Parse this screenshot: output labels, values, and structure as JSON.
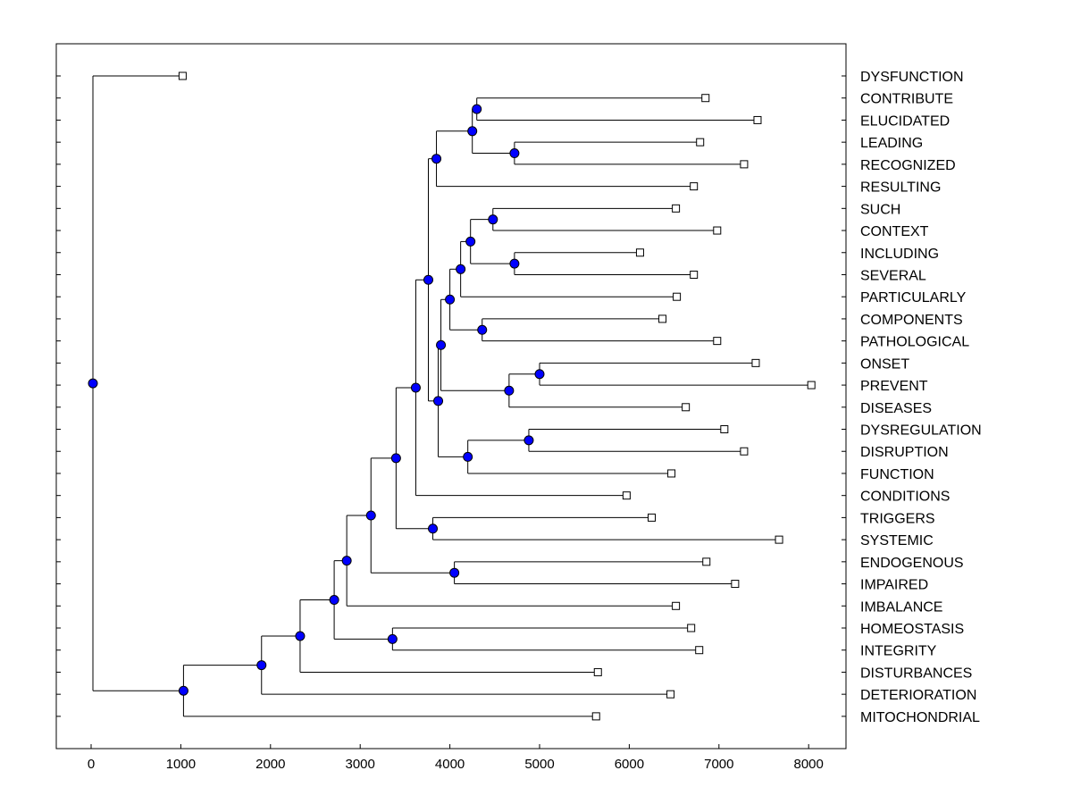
{
  "chart_data": {
    "type": "dendrogram",
    "orientation": "horizontal",
    "xlim": [
      -400,
      8400
    ],
    "x_ticks": [
      0,
      1000,
      2000,
      3000,
      4000,
      5000,
      6000,
      7000,
      8000
    ],
    "x_tick_labels": [
      "0",
      "1000",
      "2000",
      "3000",
      "4000",
      "5000",
      "6000",
      "7000",
      "8000"
    ],
    "leaves": [
      {
        "name": "DYSFUNCTION",
        "value": 1020
      },
      {
        "name": "CONTRIBUTE",
        "value": 6850
      },
      {
        "name": "ELUCIDATED",
        "value": 7430
      },
      {
        "name": "LEADING",
        "value": 6790
      },
      {
        "name": "RECOGNIZED",
        "value": 7280
      },
      {
        "name": "RESULTING",
        "value": 6720
      },
      {
        "name": "SUCH",
        "value": 6520
      },
      {
        "name": "CONTEXT",
        "value": 6980
      },
      {
        "name": "INCLUDING",
        "value": 6120
      },
      {
        "name": "SEVERAL",
        "value": 6720
      },
      {
        "name": "PARTICULARLY",
        "value": 6530
      },
      {
        "name": "COMPONENTS",
        "value": 6370
      },
      {
        "name": "PATHOLOGICAL",
        "value": 6980
      },
      {
        "name": "ONSET",
        "value": 7410
      },
      {
        "name": "PREVENT",
        "value": 8030
      },
      {
        "name": "DISEASES",
        "value": 6630
      },
      {
        "name": "DYSREGULATION",
        "value": 7060
      },
      {
        "name": "DISRUPTION",
        "value": 7280
      },
      {
        "name": "FUNCTION",
        "value": 6470
      },
      {
        "name": "CONDITIONS",
        "value": 5970
      },
      {
        "name": "TRIGGERS",
        "value": 6250
      },
      {
        "name": "SYSTEMIC",
        "value": 7670
      },
      {
        "name": "ENDOGENOUS",
        "value": 6860
      },
      {
        "name": "IMPAIRED",
        "value": 7180
      },
      {
        "name": "IMBALANCE",
        "value": 6520
      },
      {
        "name": "HOMEOSTASIS",
        "value": 6690
      },
      {
        "name": "INTEGRITY",
        "value": 6780
      },
      {
        "name": "DISTURBANCES",
        "value": 5650
      },
      {
        "name": "DETERIORATION",
        "value": 6460
      },
      {
        "name": "MITOCHONDRIAL",
        "value": 5630
      }
    ],
    "merges": [
      {
        "id": "n1",
        "value": 4300,
        "children": [
          "L1",
          "L2"
        ]
      },
      {
        "id": "n2",
        "value": 4720,
        "children": [
          "L3",
          "L4"
        ]
      },
      {
        "id": "n3",
        "value": 4250,
        "children": [
          "n1",
          "n2"
        ]
      },
      {
        "id": "n4",
        "value": 3850,
        "children": [
          "n3",
          "L5"
        ]
      },
      {
        "id": "n5",
        "value": 4480,
        "children": [
          "L6",
          "L7"
        ]
      },
      {
        "id": "n6",
        "value": 4720,
        "children": [
          "L8",
          "L9"
        ]
      },
      {
        "id": "n7",
        "value": 4230,
        "children": [
          "n5",
          "n6"
        ]
      },
      {
        "id": "n8",
        "value": 4120,
        "children": [
          "n7",
          "L10"
        ]
      },
      {
        "id": "n9",
        "value": 4360,
        "children": [
          "L11",
          "L12"
        ]
      },
      {
        "id": "n10",
        "value": 4000,
        "children": [
          "n8",
          "n9"
        ]
      },
      {
        "id": "n11",
        "value": 5000,
        "children": [
          "L13",
          "L14"
        ]
      },
      {
        "id": "n12",
        "value": 4660,
        "children": [
          "n11",
          "L15"
        ]
      },
      {
        "id": "n13",
        "value": 3900,
        "children": [
          "n10",
          "n12"
        ]
      },
      {
        "id": "n14",
        "value": 4880,
        "children": [
          "L16",
          "L17"
        ]
      },
      {
        "id": "n15",
        "value": 4200,
        "children": [
          "n14",
          "L18"
        ]
      },
      {
        "id": "n16",
        "value": 3870,
        "children": [
          "n13",
          "n15"
        ]
      },
      {
        "id": "n17",
        "value": 3760,
        "children": [
          "n4",
          "n16"
        ]
      },
      {
        "id": "n18",
        "value": 3620,
        "children": [
          "n17",
          "L19"
        ]
      },
      {
        "id": "n19",
        "value": 3810,
        "children": [
          "L20",
          "L21"
        ]
      },
      {
        "id": "n20",
        "value": 3400,
        "children": [
          "n18",
          "n19"
        ]
      },
      {
        "id": "n21",
        "value": 4050,
        "children": [
          "L22",
          "L23"
        ]
      },
      {
        "id": "n22",
        "value": 3120,
        "children": [
          "n20",
          "n21"
        ]
      },
      {
        "id": "n23",
        "value": 2850,
        "children": [
          "n22",
          "L24"
        ]
      },
      {
        "id": "n24",
        "value": 3360,
        "children": [
          "L25",
          "L26"
        ]
      },
      {
        "id": "n25",
        "value": 2710,
        "children": [
          "n23",
          "n24"
        ]
      },
      {
        "id": "n26",
        "value": 2330,
        "children": [
          "n25",
          "L27"
        ]
      },
      {
        "id": "n27",
        "value": 1900,
        "children": [
          "n26",
          "L28"
        ]
      },
      {
        "id": "n28",
        "value": 1030,
        "children": [
          "n27",
          "L29"
        ]
      },
      {
        "id": "n29",
        "value": 20,
        "children": [
          "L0",
          "n28"
        ]
      }
    ],
    "colors": {
      "node_fill": "#0000ff",
      "leaf_fill": "#ffffff",
      "line": "#000000"
    }
  }
}
